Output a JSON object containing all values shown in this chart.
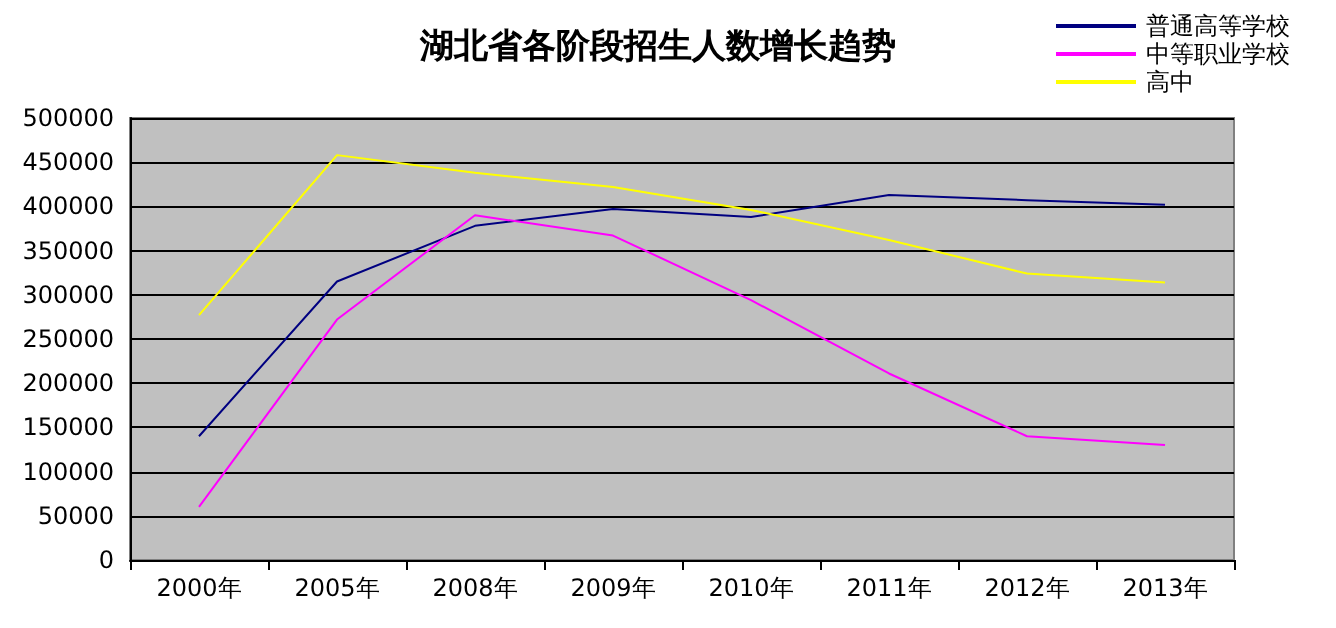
{
  "chart_data": {
    "type": "line",
    "title": "湖北省各阶段招生人数增长趋势",
    "categories": [
      "2000年",
      "2005年",
      "2008年",
      "2009年",
      "2010年",
      "2011年",
      "2012年",
      "2013年"
    ],
    "series": [
      {
        "name": "普通高等学校",
        "color": "#000080",
        "values": [
          140000,
          315000,
          378000,
          397000,
          388000,
          413000,
          407000,
          402000
        ]
      },
      {
        "name": "中等职业学校",
        "color": "#ff00ff",
        "values": [
          60000,
          272000,
          390000,
          367000,
          294000,
          211000,
          140000,
          130000
        ]
      },
      {
        "name": "高中",
        "color": "#ffff00",
        "values": [
          277000,
          458000,
          438000,
          422000,
          396000,
          362000,
          324000,
          314000
        ]
      }
    ],
    "ylim": [
      0,
      500000
    ],
    "yticks": [
      0,
      50000,
      100000,
      150000,
      200000,
      250000,
      300000,
      350000,
      400000,
      450000,
      500000
    ],
    "grid": "y",
    "legend": "top right",
    "marker": "none",
    "line_style": "solid"
  }
}
